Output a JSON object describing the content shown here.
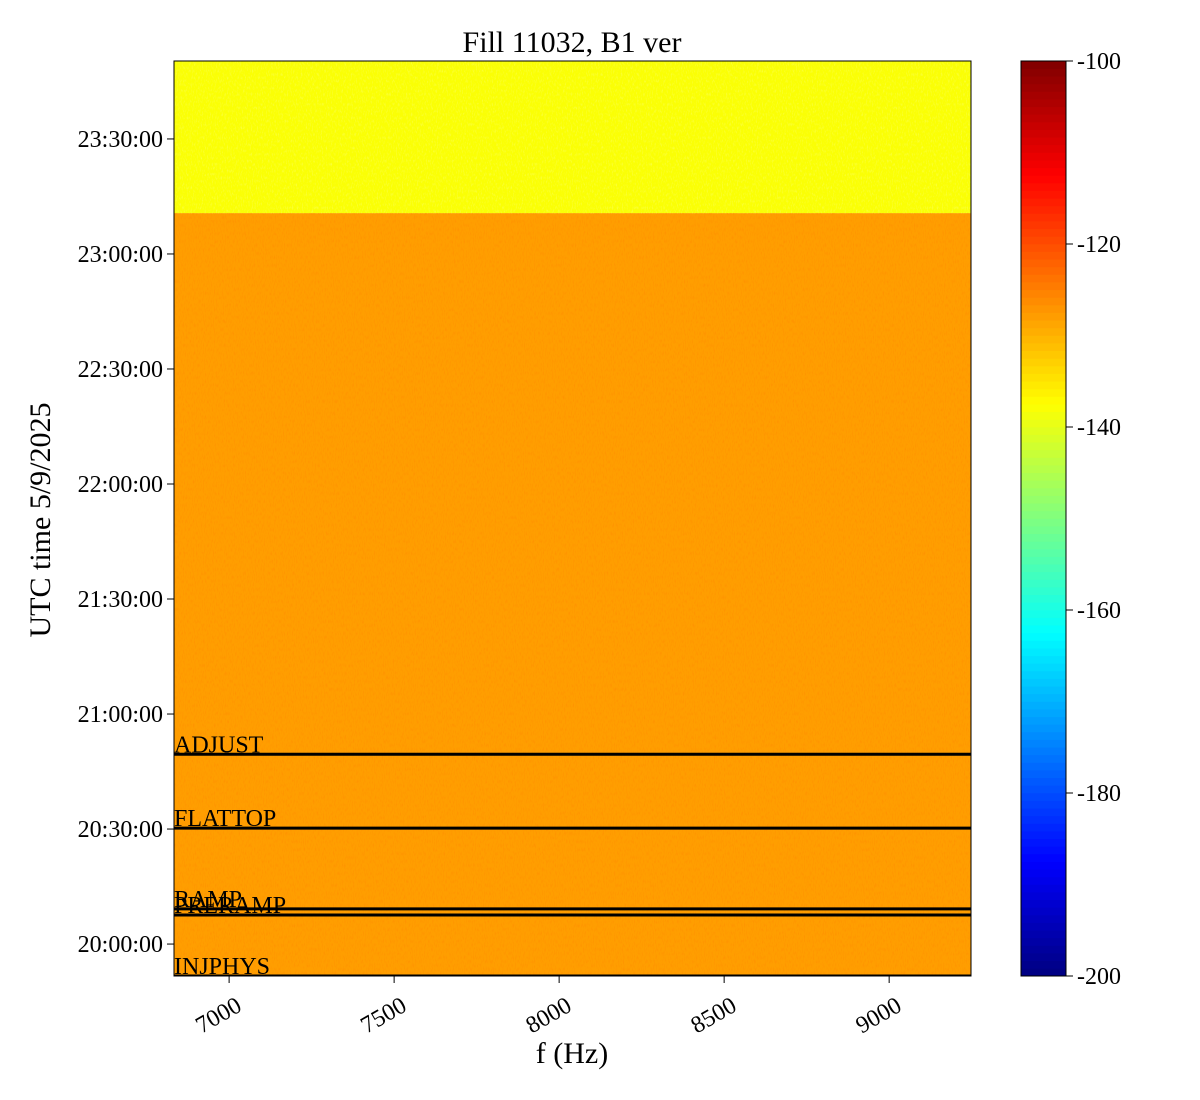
{
  "chart_data": {
    "type": "spectrogram",
    "title": "Fill 11032, B1 ver",
    "x_label": "f (Hz)",
    "y_label": "UTC time 5/9/2025",
    "xlim": [
      6833,
      9248
    ],
    "xticks": [
      7000,
      7500,
      8000,
      8500,
      9000
    ],
    "ylim": [
      "19:51:40",
      "23:50:20"
    ],
    "yticks": [
      "20:00:00",
      "20:30:00",
      "21:00:00",
      "21:30:00",
      "22:00:00",
      "22:30:00",
      "23:00:00",
      "23:30:00"
    ],
    "colormap": "jet",
    "clim": [
      -200,
      -100
    ],
    "cticks": [
      -100,
      -120,
      -140,
      -160,
      -180,
      -200
    ],
    "regions": [
      {
        "from": "19:51:40",
        "to": "23:10:40",
        "value": -128
      },
      {
        "from": "23:10:40",
        "to": "23:50:20",
        "value": -138
      }
    ],
    "events": [
      {
        "label": "ADJUST",
        "time": "20:49:30"
      },
      {
        "label": "FLATTOP",
        "time": "20:30:15"
      },
      {
        "label": "RAMP",
        "time": "20:09:10"
      },
      {
        "label": "PRERAMP",
        "time": "20:07:35"
      },
      {
        "label": "INJPHYS",
        "time": "19:51:40"
      }
    ]
  }
}
